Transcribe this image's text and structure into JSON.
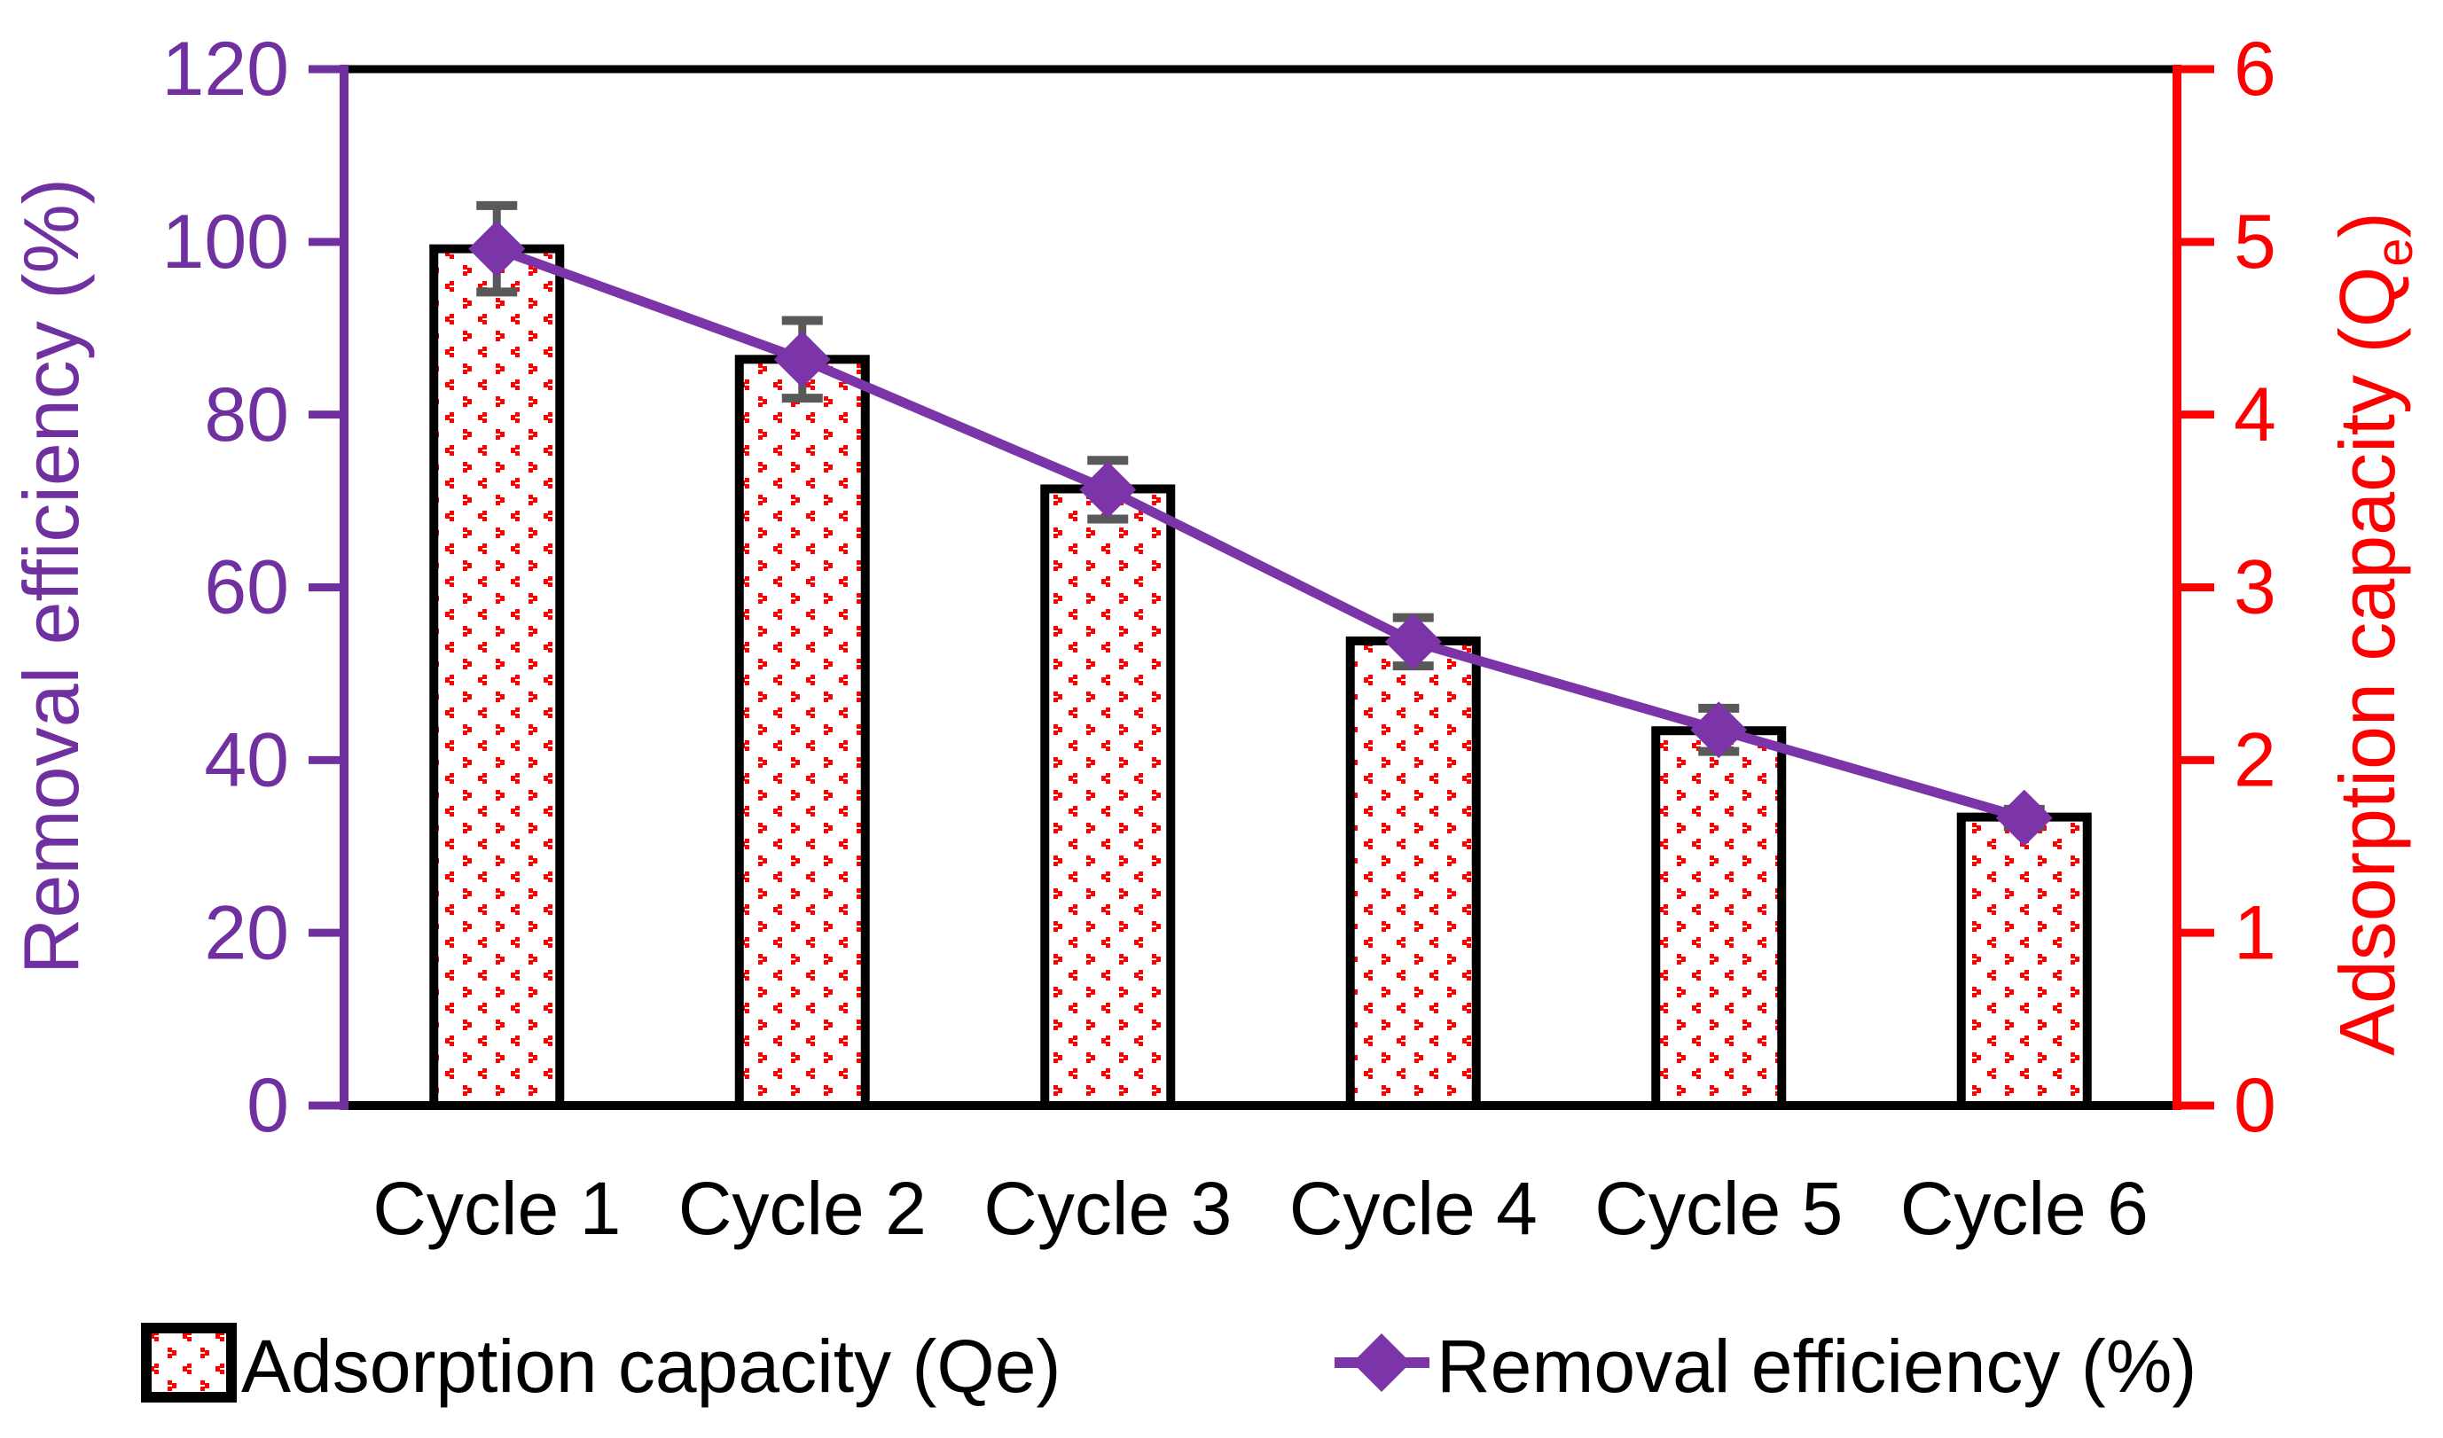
{
  "chart_data": {
    "type": "combo-bar-line",
    "title": "",
    "categories": [
      "Cycle 1",
      "Cycle 2",
      "Cycle 3",
      "Cycle 4",
      "Cycle 5",
      "Cycle 6"
    ],
    "series": [
      {
        "name": "Adsorption capacity (Qe)",
        "type": "bar",
        "axis": "right",
        "values": [
          4.96,
          4.32,
          3.57,
          2.69,
          2.17,
          1.67
        ],
        "fill": "red-divot-pattern",
        "pattern_color": "#FF0000",
        "border_color": "#000000"
      },
      {
        "name": "Removal efficiency (%)",
        "type": "line",
        "axis": "left",
        "values": [
          99.2,
          86.4,
          71.3,
          53.7,
          43.5,
          33.3
        ],
        "error_bars": [
          5.0,
          4.5,
          3.4,
          2.8,
          2.5,
          1.0
        ],
        "color": "#7B35A9",
        "marker": "diamond",
        "error_bar_color": "#595959"
      }
    ],
    "left_axis": {
      "title": "Removal efficiency (%)",
      "min": 0,
      "max": 120,
      "step": 20,
      "color": "#7030A0"
    },
    "right_axis": {
      "title_main": "Adsorption capacity (Q",
      "title_sub": "e",
      "title_close": ")",
      "min": 0,
      "max": 6,
      "step": 1,
      "color": "#FF0000"
    },
    "x_axis": {
      "color": "#000000"
    },
    "grid": "off",
    "legend_position": "bottom",
    "legend": [
      {
        "label": "Adsorption capacity (Qe)",
        "swatch": "pattern-box"
      },
      {
        "label": "Removal efficiency (%)",
        "swatch": "line-diamond"
      }
    ]
  },
  "colors": {
    "background": "#FFFFFF",
    "bar_pattern_red": "#FF0000",
    "series_purple": "#7B35A9",
    "axis_purple": "#7030A0",
    "axis_red": "#FF0000",
    "error_gray": "#595959",
    "text_black": "#000000"
  }
}
